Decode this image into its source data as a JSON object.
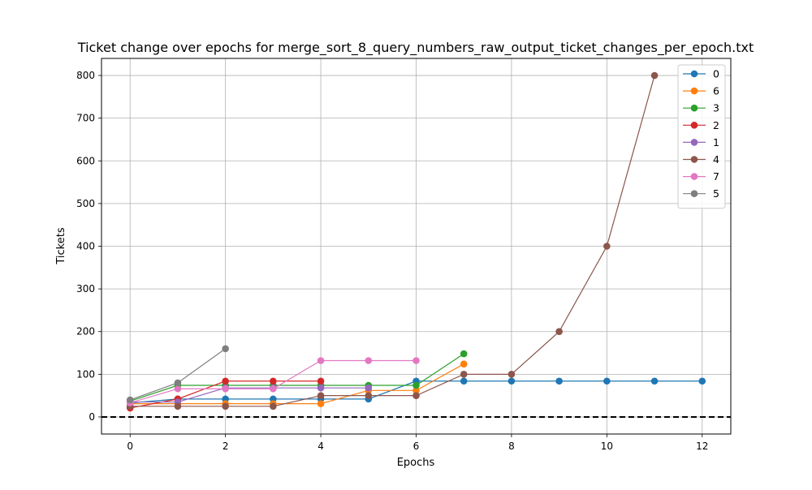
{
  "chart_data": {
    "type": "line",
    "title": "Ticket change over epochs for merge_sort_8_query_numbers_raw_output_ticket_changes_per_epoch.txt",
    "xlabel": "Epochs",
    "ylabel": "Tickets",
    "xlim": [
      -0.6,
      12.6
    ],
    "ylim": [
      -40,
      840
    ],
    "xticks": [
      0,
      2,
      4,
      6,
      8,
      10,
      12
    ],
    "yticks": [
      0,
      100,
      200,
      300,
      400,
      500,
      600,
      700,
      800
    ],
    "grid": true,
    "legend_position": "top-right",
    "reference_line": {
      "y": 0,
      "style": "dashed",
      "color": "#000000"
    },
    "series": [
      {
        "name": "0",
        "color": "#1f77b4",
        "x": [
          0,
          1,
          2,
          3,
          4,
          5,
          6,
          7,
          8,
          9,
          10,
          11,
          12
        ],
        "y": [
          33,
          42,
          42,
          42,
          42,
          42,
          84,
          84,
          84,
          84,
          84,
          84,
          84
        ]
      },
      {
        "name": "6",
        "color": "#ff7f0e",
        "x": [
          0,
          1,
          2,
          3,
          4,
          5,
          6,
          7
        ],
        "y": [
          31,
          31,
          31,
          31,
          31,
          62,
          62,
          124
        ]
      },
      {
        "name": "3",
        "color": "#2ca02c",
        "x": [
          0,
          1,
          2,
          3,
          4,
          5,
          6,
          7
        ],
        "y": [
          37,
          74,
          74,
          74,
          74,
          74,
          74,
          148
        ]
      },
      {
        "name": "2",
        "color": "#d62728",
        "x": [
          0,
          1,
          2,
          3,
          4
        ],
        "y": [
          21,
          42,
          84,
          84,
          84
        ]
      },
      {
        "name": "1",
        "color": "#9467bd",
        "x": [
          0,
          1,
          2,
          3,
          4,
          5
        ],
        "y": [
          35,
          35,
          68,
          68,
          68,
          68
        ]
      },
      {
        "name": "4",
        "color": "#8c564b",
        "x": [
          0,
          1,
          2,
          3,
          4,
          5,
          6,
          7,
          8,
          9,
          10,
          11
        ],
        "y": [
          25,
          25,
          25,
          25,
          50,
          50,
          50,
          100,
          100,
          200,
          400,
          800
        ]
      },
      {
        "name": "7",
        "color": "#e377c2",
        "x": [
          0,
          1,
          2,
          3,
          4,
          5,
          6
        ],
        "y": [
          33,
          66,
          66,
          66,
          132,
          132,
          132
        ]
      },
      {
        "name": "5",
        "color": "#7f7f7f",
        "x": [
          0,
          1,
          2
        ],
        "y": [
          40,
          80,
          160
        ]
      }
    ]
  }
}
